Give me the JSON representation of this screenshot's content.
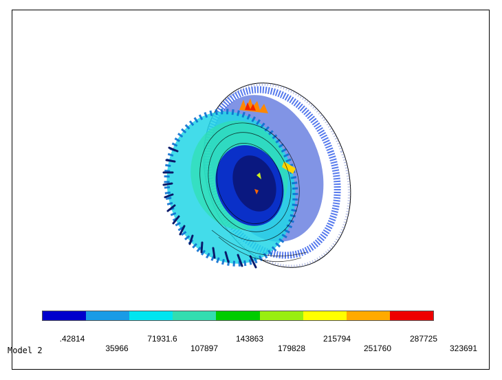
{
  "legend": {
    "colors": [
      "#0000cc",
      "#1a9be6",
      "#00e5f0",
      "#33ddb0",
      "#00cc00",
      "#99ee11",
      "#ffff00",
      "#ffaa00",
      "#ee0000"
    ],
    "top_labels": [
      ".42814",
      "71931.6",
      "143863",
      "215794",
      "287725"
    ],
    "bottom_labels": [
      "35966",
      "107897",
      "179828",
      "251760",
      "323691"
    ]
  },
  "model_label": "Model 2"
}
